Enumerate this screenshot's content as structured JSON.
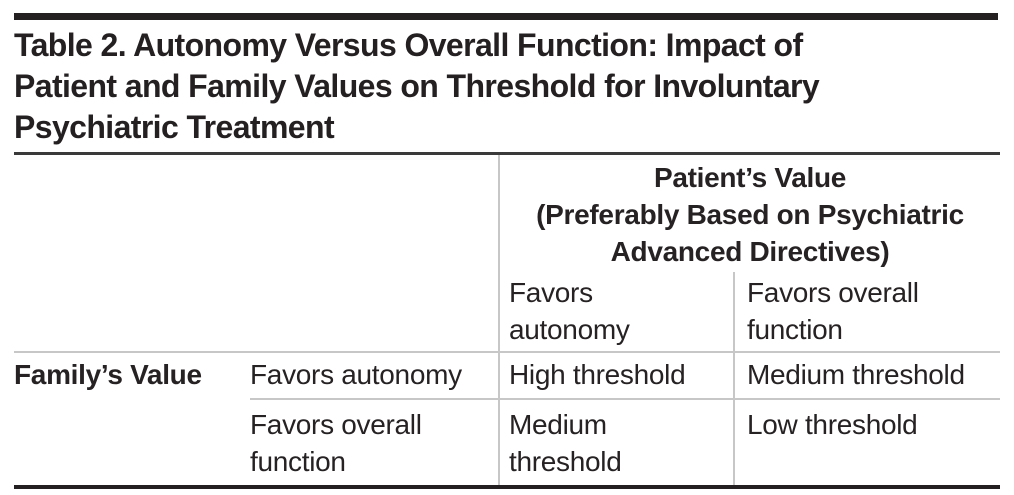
{
  "page": {
    "title": "Table 2. Autonomy Versus Overall Function: Impact of\nPatient and Family Values on Threshold for Involuntary\nPsychiatric Treatment"
  },
  "table": {
    "column_group_header": "Patient’s Value\n(Preferably Based on Psychiatric\nAdvanced Directives)",
    "column_headers": [
      "Favors\nautonomy",
      "Favors overall\nfunction"
    ],
    "row_group_header": "Family’s Value",
    "rows": [
      {
        "label": "Favors autonomy",
        "cells": [
          "High threshold",
          "Medium threshold"
        ]
      },
      {
        "label": "Favors overall\nfunction",
        "cells": [
          "Medium\nthreshold",
          "Low threshold"
        ]
      }
    ]
  },
  "chart_data": {
    "type": "table",
    "title": "Table 2. Autonomy Versus Overall Function: Impact of Patient and Family Values on Threshold for Involuntary Psychiatric Treatment",
    "column_axis": "Patient’s Value (Preferably Based on Psychiatric Advanced Directives)",
    "row_axis": "Family’s Value",
    "columns": [
      "Favors autonomy",
      "Favors overall function"
    ],
    "row_labels": [
      "Favors autonomy",
      "Favors overall function"
    ],
    "values": [
      [
        "High threshold",
        "Medium threshold"
      ],
      [
        "Medium threshold",
        "Low threshold"
      ]
    ]
  },
  "colors": {
    "text": "#242021",
    "top_bar": "#242021",
    "heavy_rule": "#242021",
    "dark_rule": "#3a3a3a",
    "light_rule": "#c7c7c7",
    "background": "#ffffff"
  }
}
